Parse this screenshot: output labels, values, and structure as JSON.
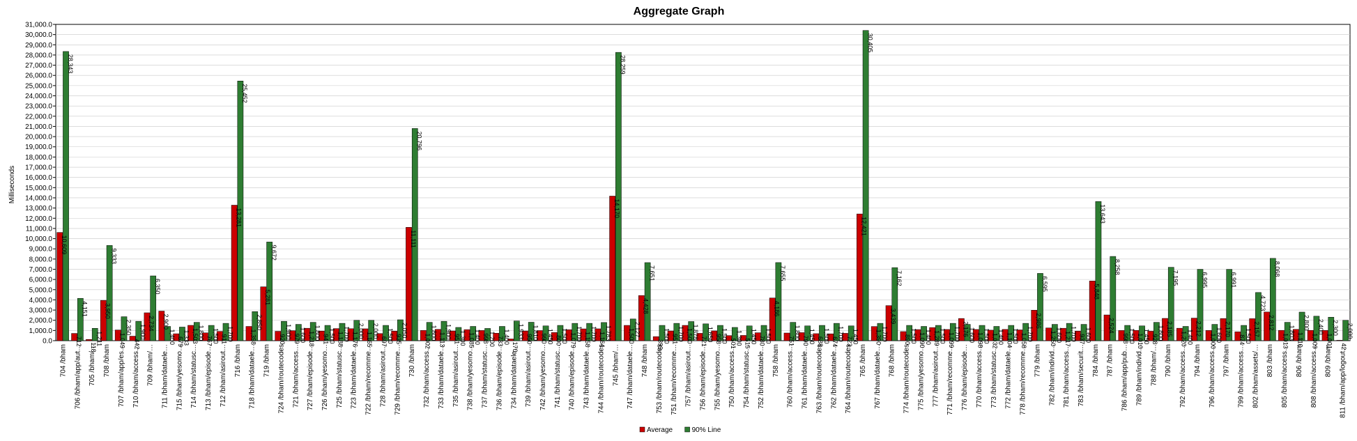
{
  "chart_data": {
    "type": "bar",
    "title": "Aggregate Graph",
    "ylabel": "Milliseconds",
    "xlabel": "",
    "ylim": [
      0,
      31000
    ],
    "ytick_step": 1000,
    "grid": true,
    "legend_position": "bottom",
    "categories": [
      "704 /bham",
      "706 /bham/app/aut…",
      "705 /bham/…",
      "708 /bham",
      "707 /bham/app/es…",
      "710 /bham/access…",
      "709 /bham/…",
      "711 /bham/dataele…",
      "715 /bham/yesomo…",
      "714 /bham/statusc…",
      "713 /bham/episode…",
      "712 /bham/asirout…",
      "716 /bham",
      "718 /bham/dataele…",
      "719 /bham",
      "724 /bham/routecodes",
      "721 /bham/access…",
      "727 /bham/episode…",
      "726 /bham/yesomo…",
      "725 /bham/statusc…",
      "723 /bham/dataele…",
      "722 /bham/recomme…",
      "728 /bham/asirout…",
      "729 /bham/recomme…",
      "730 /bham",
      "732 /bham/access…",
      "733 /bham/dataele…",
      "735 /bham/asirout…",
      "738 /bham/yesomo…",
      "737 /bham/statusc…",
      "736 /bham/episode…",
      "734 /bham/dataele…",
      "739 /bham/asirout…",
      "742 /bham/yesomo…",
      "741 /bham/statusc…",
      "740 /bham/episode…",
      "743 /bham/dataele…",
      "744 /bham/routecodes",
      "745 /bham/…",
      "747 /bham/dataele…",
      "748 /bham",
      "753 /bham/routecodes",
      "751 /bham/recomme…",
      "757 /bham/asirout…",
      "756 /bham/episode…",
      "755 /bham/yesomo…",
      "750 /bham/access…",
      "754 /bham/statusc…",
      "752 /bham/dataele…",
      "758 /bham",
      "760 /bham/access…",
      "761 /bham/dataele…",
      "763 /bham/routecodes",
      "762 /bham/dataele…",
      "764 /bham/routecodes",
      "765 /bham",
      "767 /bham/dataele…",
      "768 /bham",
      "774 /bham/routecodes",
      "775 /bham/yesomo…",
      "777 /bham/asirout…",
      "771 /bham/recomme…",
      "776 /bham/episode…",
      "770 /bham/access…",
      "773 /bham/statusc…",
      "772 /bham/dataele…",
      "778 /bham/recomme…",
      "779 /bham",
      "782 /bham/individ…",
      "781 /bham/access…",
      "783 /bham/securit…",
      "784 /bham",
      "787 /bham",
      "786 /bham/app/pub…",
      "789 /bham/individ…",
      "788 /bham/…",
      "790 /bham",
      "792 /bham/access…",
      "794 /bham",
      "796 /bham/access…",
      "797 /bham",
      "799 /bham/access…",
      "802 /bham/assets/…",
      "803 /bham",
      "805 /bham/access…",
      "806 /bham",
      "808 /bham/access…",
      "809 /bham",
      "811 /bham/app/logout…"
    ],
    "series": [
      {
        "name": "Average",
        "color": "#cc0000",
        "values": [
          10609,
          712,
          118,
          3950,
          1049,
          442,
          2734,
          2900,
          679,
          1503,
          767,
          911,
          13281,
          1398,
          5281,
          920,
          979,
          1218,
          941,
          1188,
          1176,
          1165,
          697,
          935,
          11111,
          1002,
          1113,
          951,
          1085,
          998,
          733,
          170,
          950,
          990,
          800,
          1079,
          1158,
          1164,
          14170,
          1500,
          4428,
          399,
          951,
          1500,
          721,
          958,
          501,
          515,
          780,
          4186,
          751,
          790,
          688,
          674,
          723,
          12421,
          1390,
          3439,
          890,
          1090,
          1289,
          1099,
          2176,
          1098,
          1032,
          1104,
          1058,
          2986,
          1250,
          1217,
          937,
          5848,
          2524,
          998,
          1010,
          928,
          2185,
          1220,
          2212,
          1000,
          2170,
          874,
          2157,
          2812,
          1013,
          1110,
          1009,
          1001,
          42
        ],
        "labels": [
          "10,609",
          "712",
          "118",
          "3,950",
          "1,049",
          "442",
          "2,734",
          "2,900",
          "679",
          "1,503",
          "767",
          "911",
          "13,281",
          "1,398",
          "5,281",
          "920",
          "979",
          "1,218",
          "941",
          "1,188",
          "1,176",
          "1,165",
          "697",
          "935",
          "11,111",
          "1,002",
          "1,113",
          "951",
          "1,085",
          "998",
          "733",
          "170",
          "950",
          "990",
          "800",
          "1,079",
          "1,158",
          "1,164",
          "14,170",
          "1,500",
          "4,428",
          "399",
          "951",
          "1,500",
          "721",
          "958",
          "501",
          "515",
          "780",
          "4,186",
          "751",
          "790",
          "688",
          "674",
          "723",
          "12,421",
          "1,390",
          "3,439",
          "890",
          "1,090",
          "1,289",
          "1,099",
          "2,176",
          "1,098",
          "1,032",
          "1,104",
          "1,058",
          "2,986",
          "1,250",
          "1,217",
          "937",
          "5,848",
          "2,524",
          "998",
          "1,010",
          "928",
          "2,185",
          "1,220",
          "2,212",
          "1,000",
          "2,170",
          "874",
          "2,157",
          "2,812",
          "1,013",
          "1,110",
          "1,009",
          "1,001",
          "42"
        ]
      },
      {
        "name": "90% Line",
        "color": "#2e7d32",
        "values": [
          28343,
          4151,
          1211,
          9333,
          2350,
          1900,
          6350,
          1400,
          1333,
          1800,
          1500,
          1700,
          25452,
          2850,
          9672,
          1900,
          1600,
          1800,
          1500,
          1700,
          2000,
          2000,
          1500,
          2050,
          20796,
          1800,
          1900,
          1300,
          1400,
          1200,
          1400,
          1933,
          1810,
          1450,
          1500,
          1700,
          1700,
          1783,
          28259,
          2127,
          7651,
          1500,
          1700,
          1878,
          1650,
          1500,
          1300,
          1450,
          1500,
          7655,
          1800,
          1450,
          1500,
          1700,
          1450,
          30405,
          1700,
          7162,
          1500,
          1400,
          1500,
          1700,
          1600,
          1500,
          1400,
          1500,
          1700,
          6595,
          1600,
          1700,
          1600,
          13643,
          8258,
          1500,
          1450,
          1800,
          7195,
          1400,
          6995,
          1600,
          6991,
          1500,
          4723,
          8068,
          1803,
          2800,
          2400,
          2300,
          2000
        ],
        "labels": [
          "28,343",
          "4,151",
          "1,211",
          "9,333",
          "2,350",
          "1,900",
          "6,350",
          "1,400",
          "1,333",
          "1,800",
          "1,500",
          "1,700",
          "25,452",
          "2,850",
          "9,672",
          "1,900",
          "1,600",
          "1,800",
          "1,500",
          "1,700",
          "2,000",
          "2,000",
          "1,500",
          "2,050",
          "20,796",
          "1,800",
          "1,900",
          "1,300",
          "1,400",
          "1,200",
          "1,400",
          "1,933",
          "1,810",
          "1,450",
          "1,500",
          "1,700",
          "1,700",
          "1,783",
          "28,259",
          "2,127",
          "7,651",
          "1,500",
          "1,700",
          "1,878",
          "1,650",
          "1,500",
          "1,300",
          "1,450",
          "1,500",
          "7,655",
          "1,800",
          "1,450",
          "1,500",
          "1,700",
          "1,450",
          "30,405",
          "1,700",
          "7,162",
          "1,500",
          "1,400",
          "1,500",
          "1,700",
          "1,600",
          "1,500",
          "1,400",
          "1,500",
          "1,700",
          "6,595",
          "1,600",
          "1,700",
          "1,600",
          "13,643",
          "8,258",
          "1,500",
          "1,450",
          "1,800",
          "7,195",
          "1,400",
          "6,995",
          "1,600",
          "6,991",
          "1,500",
          "4,723",
          "8,068",
          "1,803",
          "2,800",
          "2,400",
          "2,300",
          "2,000"
        ]
      }
    ]
  }
}
